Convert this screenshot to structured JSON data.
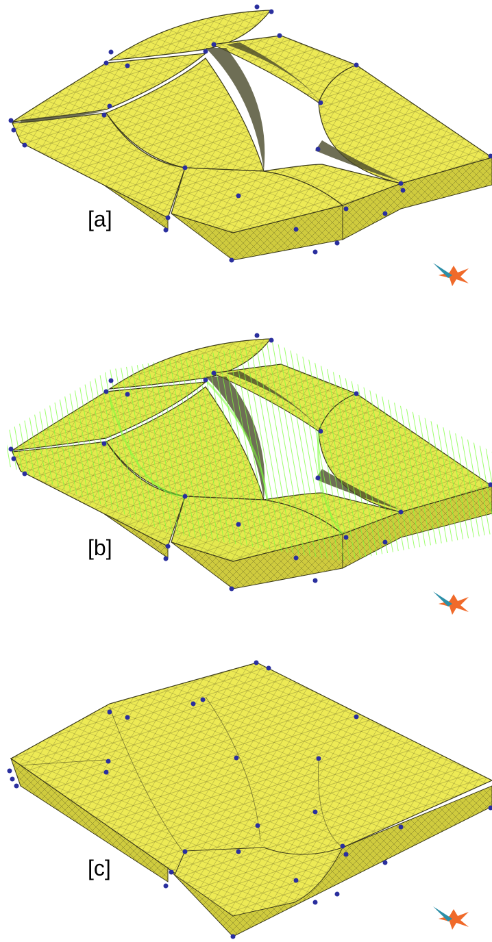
{
  "figure": {
    "panels": [
      {
        "id": "a",
        "label": "[a]",
        "state": "separated-blocks"
      },
      {
        "id": "b",
        "label": "[b]",
        "state": "blocks-with-displacement-vectors"
      },
      {
        "id": "c",
        "label": "[c]",
        "state": "assembled-block"
      }
    ],
    "colors": {
      "mesh_fill": "#EDEA55",
      "mesh_edge": "#3B3A1A",
      "side_fill": "#C9C53A",
      "node": "#2A2F9E",
      "vector": "#7CFF3A",
      "axis_orange": "#F06A2A",
      "axis_teal": "#2C8FA8"
    },
    "icons": [
      "triad-axis-icon"
    ]
  }
}
